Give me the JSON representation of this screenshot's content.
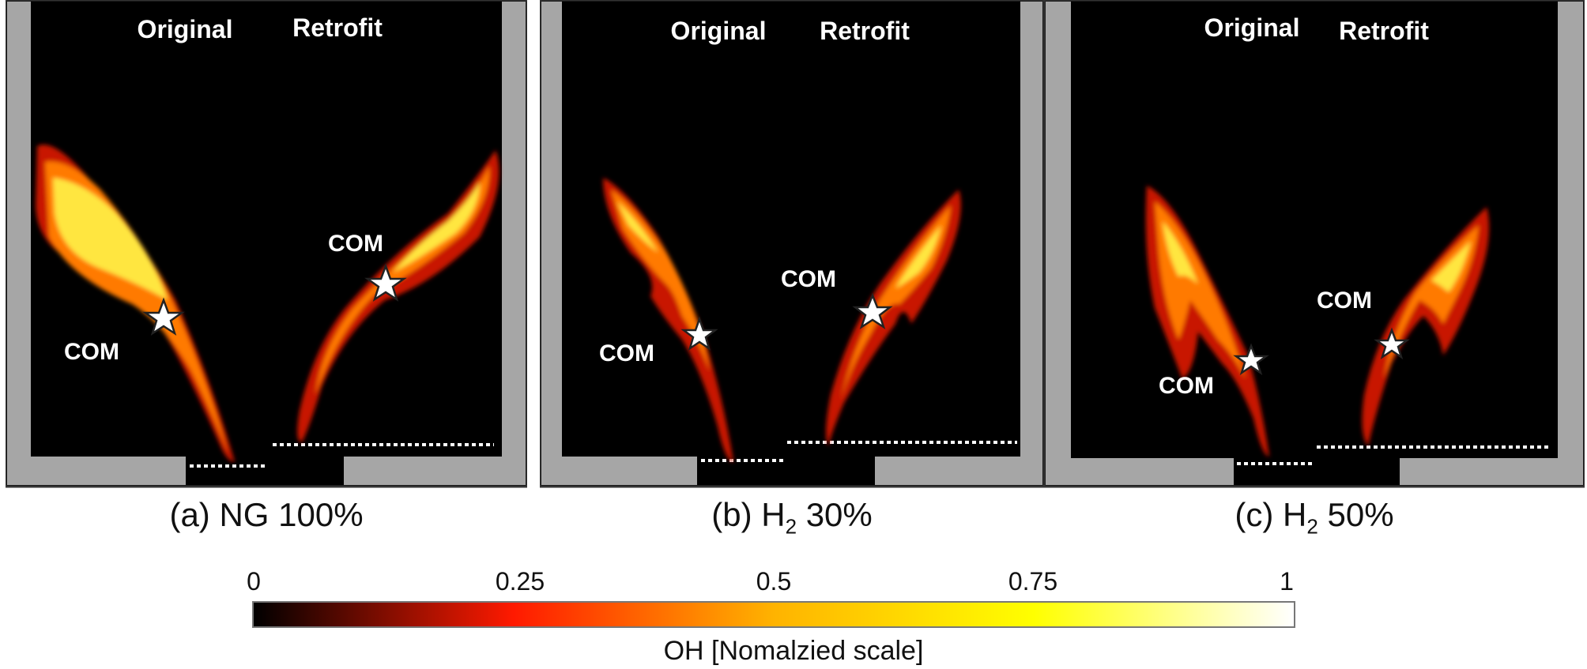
{
  "panels": [
    {
      "id": "a",
      "header_left": "Original",
      "header_right": "Retrofit",
      "com_left": "COM",
      "com_right": "COM",
      "caption_prefix": "(a) NG 100%",
      "caption_sub": "",
      "caption_suffix": ""
    },
    {
      "id": "b",
      "header_left": "Original",
      "header_right": "Retrofit",
      "com_left": "COM",
      "com_right": "COM",
      "caption_prefix": "(b) H",
      "caption_sub": "2",
      "caption_suffix": " 30%"
    },
    {
      "id": "c",
      "header_left": "Original",
      "header_right": "Retrofit",
      "com_left": "COM",
      "com_right": "COM",
      "caption_prefix": "(c) H",
      "caption_sub": "2",
      "caption_suffix": " 50%"
    }
  ],
  "colorbar": {
    "title": "OH [Nomalzied scale]",
    "ticks": [
      "0",
      "0.25",
      "0.5",
      "0.75",
      "1"
    ],
    "colors": [
      "#000000",
      "#ff1a00",
      "#ffb300",
      "#ffff00",
      "#ffffff"
    ]
  },
  "colors": {
    "wall": "#a6a6a6",
    "background": "#000000",
    "flame_outer": "#c81400",
    "flame_mid": "#ff7a00",
    "flame_core": "#ffe640"
  }
}
